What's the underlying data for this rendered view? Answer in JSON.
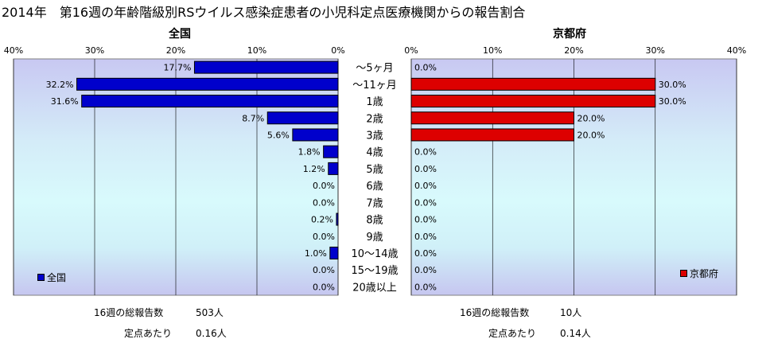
{
  "title": "2014年　第16週の年齢階級別RSウイルス感染症患者の小児科定点医療機関からの報告割合",
  "colors": {
    "national": "#0000cc",
    "kyoto": "#dd0000"
  },
  "chart_data": {
    "type": "bar",
    "orientation": "horizontal",
    "categories": [
      "～5ヶ月",
      "～11ヶ月",
      "1歳",
      "2歳",
      "3歳",
      "4歳",
      "5歳",
      "6歳",
      "7歳",
      "8歳",
      "9歳",
      "10～14歳",
      "15～19歳",
      "20歳以上"
    ],
    "panels": [
      {
        "title": "全国",
        "legend": "全国",
        "legend_position": "bottom-left",
        "direction": "reversed",
        "xlim": [
          0,
          40
        ],
        "ticks": [
          "0%",
          "10%",
          "20%",
          "30%",
          "40%"
        ],
        "values": [
          17.7,
          32.2,
          31.6,
          8.7,
          5.6,
          1.8,
          1.2,
          0.0,
          0.0,
          0.2,
          0.0,
          1.0,
          0.0,
          0.0
        ],
        "labels": [
          "17.7%",
          "32.2%",
          "31.6%",
          "8.7%",
          "5.6%",
          "1.8%",
          "1.2%",
          "0.0%",
          "0.0%",
          "0.2%",
          "0.0%",
          "1.0%",
          "0.0%",
          "0.0%"
        ]
      },
      {
        "title": "京都府",
        "legend": "京都府",
        "legend_position": "bottom-right",
        "direction": "normal",
        "xlim": [
          0,
          40
        ],
        "ticks": [
          "0%",
          "10%",
          "20%",
          "30%",
          "40%"
        ],
        "values": [
          0.0,
          30.0,
          30.0,
          20.0,
          20.0,
          0.0,
          0.0,
          0.0,
          0.0,
          0.0,
          0.0,
          0.0,
          0.0,
          0.0
        ],
        "labels": [
          "0.0%",
          "30.0%",
          "30.0%",
          "20.0%",
          "20.0%",
          "0.0%",
          "0.0%",
          "0.0%",
          "0.0%",
          "0.0%",
          "0.0%",
          "0.0%",
          "0.0%",
          "0.0%"
        ]
      }
    ]
  },
  "stats": {
    "national": {
      "total_label": "16週の総報告数",
      "total_value": "503人",
      "per_label": "定点あたり",
      "per_value": "0.16人"
    },
    "kyoto": {
      "total_label": "16週の総報告数",
      "total_value": "10人",
      "per_label": "定点あたり",
      "per_value": "0.14人"
    }
  }
}
